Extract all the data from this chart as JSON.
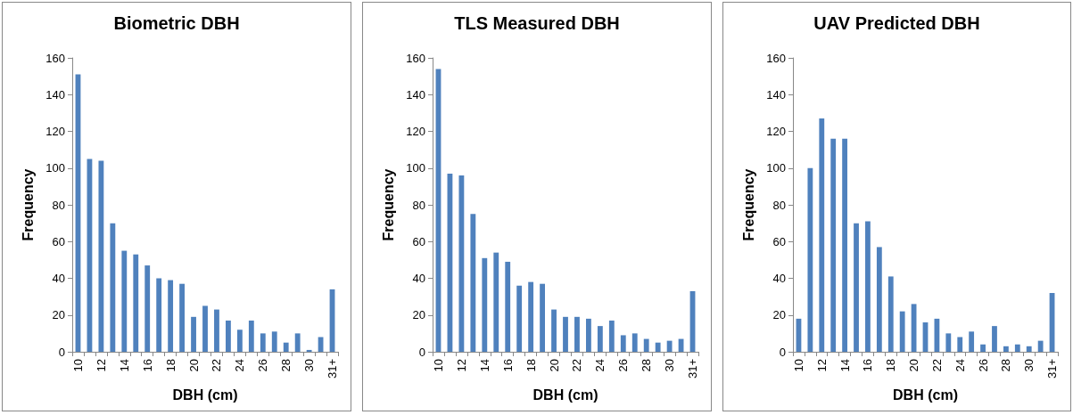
{
  "chart_data": [
    {
      "type": "bar",
      "title": "Biometric DBH",
      "xlabel": "DBH (cm)",
      "ylabel": "Frequency",
      "categories": [
        "10",
        null,
        "12",
        null,
        "14",
        null,
        "16",
        null,
        "18",
        null,
        "20",
        null,
        "22",
        null,
        "24",
        null,
        "26",
        null,
        "28",
        null,
        "30",
        null,
        "31+"
      ],
      "series": [
        {
          "color": "#4f81bd",
          "values": [
            151,
            105,
            104,
            70,
            55,
            53,
            47,
            40,
            39,
            37,
            19,
            25,
            23,
            17,
            12,
            17,
            10,
            11,
            5,
            10,
            1,
            8,
            34
          ]
        }
      ],
      "ylim": [
        0,
        160
      ],
      "yticks": [
        0,
        20,
        40,
        60,
        80,
        100,
        120,
        140,
        160
      ],
      "grid": false
    },
    {
      "type": "bar",
      "title": "TLS Measured DBH",
      "xlabel": "DBH (cm)",
      "ylabel": "Frequency",
      "categories": [
        "10",
        null,
        "12",
        null,
        "14",
        null,
        "16",
        null,
        "18",
        null,
        "20",
        null,
        "22",
        null,
        "24",
        null,
        "26",
        null,
        "28",
        null,
        "30",
        null,
        "31+"
      ],
      "series": [
        {
          "color": "#4f81bd",
          "values": [
            154,
            97,
            96,
            75,
            51,
            54,
            49,
            36,
            38,
            37,
            23,
            19,
            19,
            18,
            14,
            17,
            9,
            10,
            7,
            5,
            6,
            7,
            33
          ]
        }
      ],
      "ylim": [
        0,
        160
      ],
      "yticks": [
        0,
        20,
        40,
        60,
        80,
        100,
        120,
        140,
        160
      ],
      "grid": false
    },
    {
      "type": "bar",
      "title": "UAV Predicted DBH",
      "xlabel": "DBH (cm)",
      "ylabel": "Frequency",
      "categories": [
        "10",
        null,
        "12",
        null,
        "14",
        null,
        "16",
        null,
        "18",
        null,
        "20",
        null,
        "22",
        null,
        "24",
        null,
        "26",
        null,
        "28",
        null,
        "30",
        null,
        "31+"
      ],
      "series": [
        {
          "color": "#4f81bd",
          "values": [
            18,
            100,
            127,
            116,
            116,
            70,
            71,
            57,
            41,
            22,
            26,
            16,
            18,
            10,
            8,
            11,
            4,
            14,
            3,
            4,
            3,
            6,
            32
          ]
        }
      ],
      "ylim": [
        0,
        160
      ],
      "yticks": [
        0,
        20,
        40,
        60,
        80,
        100,
        120,
        140,
        160
      ],
      "grid": false
    }
  ]
}
